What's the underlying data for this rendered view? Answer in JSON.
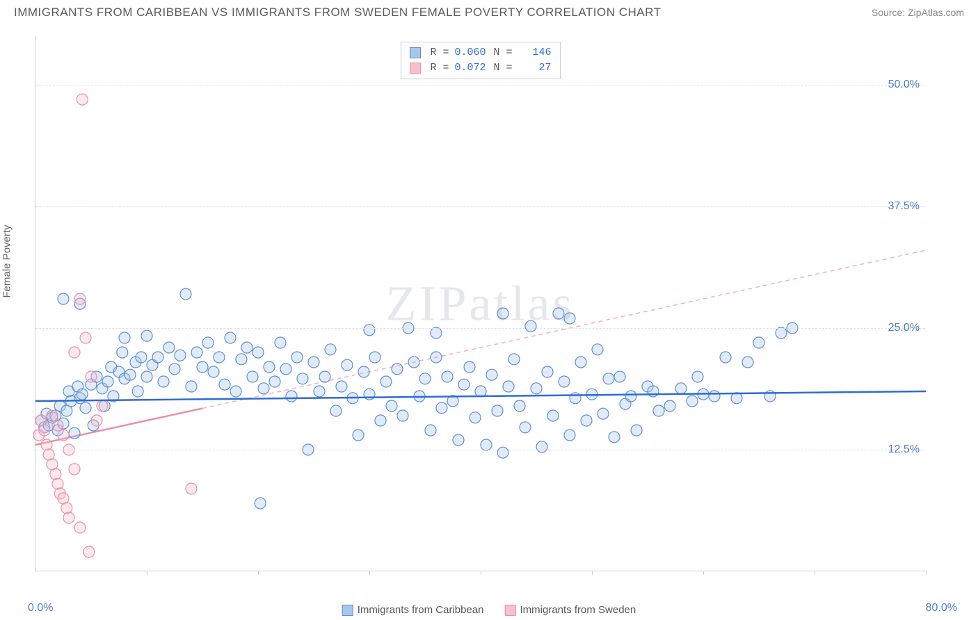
{
  "title": "IMMIGRANTS FROM CARIBBEAN VS IMMIGRANTS FROM SWEDEN FEMALE POVERTY CORRELATION CHART",
  "source": "Source: ZipAtlas.com",
  "ylabel": "Female Poverty",
  "watermark": "ZIPatlas",
  "chart": {
    "type": "scatter",
    "xlim": [
      0,
      80
    ],
    "ylim": [
      0,
      55
    ],
    "xaxis_min_label": "0.0%",
    "xaxis_max_label": "80.0%",
    "xtick_positions": [
      10,
      20,
      30,
      40,
      50,
      60,
      70,
      80
    ],
    "yticks": [
      {
        "v": 12.5,
        "label": "12.5%"
      },
      {
        "v": 25.0,
        "label": "25.0%"
      },
      {
        "v": 37.5,
        "label": "37.5%"
      },
      {
        "v": 50.0,
        "label": "50.0%"
      }
    ],
    "grid_color": "#e0e0e0",
    "axis_color": "#cccccc",
    "tick_label_color": "#4a7ec9",
    "background_color": "#ffffff",
    "marker_radius": 8,
    "marker_stroke_width": 1.2,
    "marker_fill_opacity": 0.35,
    "series": [
      {
        "name": "Immigrants from Caribbean",
        "color_fill": "#a8c5eb",
        "color_stroke": "#5b8fd6",
        "R": "0.060",
        "N": "146",
        "trend": {
          "style": "solid",
          "color": "#2e6bd6",
          "width": 2.5,
          "y_at_xmin": 17.5,
          "y_at_xmax": 18.5,
          "extrapolate": true
        },
        "points": [
          [
            0.5,
            15.5
          ],
          [
            0.8,
            14.8
          ],
          [
            1.0,
            16.2
          ],
          [
            1.2,
            15.0
          ],
          [
            1.5,
            15.8
          ],
          [
            1.8,
            16.0
          ],
          [
            2.0,
            14.5
          ],
          [
            2.2,
            17.0
          ],
          [
            2.5,
            15.2
          ],
          [
            2.8,
            16.5
          ],
          [
            3.0,
            18.5
          ],
          [
            3.2,
            17.5
          ],
          [
            3.5,
            14.2
          ],
          [
            3.8,
            19.0
          ],
          [
            4.0,
            17.8
          ],
          [
            4.2,
            18.2
          ],
          [
            4.5,
            16.8
          ],
          [
            5.0,
            19.2
          ],
          [
            5.2,
            15.0
          ],
          [
            5.5,
            20.0
          ],
          [
            6.0,
            18.8
          ],
          [
            6.2,
            17.0
          ],
          [
            6.5,
            19.5
          ],
          [
            6.8,
            21.0
          ],
          [
            7.0,
            18.0
          ],
          [
            7.5,
            20.5
          ],
          [
            7.8,
            22.5
          ],
          [
            8.0,
            19.8
          ],
          [
            8.5,
            20.2
          ],
          [
            9.0,
            21.5
          ],
          [
            9.2,
            18.5
          ],
          [
            9.5,
            22.0
          ],
          [
            10.0,
            20.0
          ],
          [
            10.5,
            21.2
          ],
          [
            11.0,
            22.0
          ],
          [
            11.5,
            19.5
          ],
          [
            12.0,
            23.0
          ],
          [
            12.5,
            20.8
          ],
          [
            13.0,
            22.2
          ],
          [
            13.5,
            28.5
          ],
          [
            14.0,
            19.0
          ],
          [
            14.5,
            22.5
          ],
          [
            15.0,
            21.0
          ],
          [
            15.5,
            23.5
          ],
          [
            16.0,
            20.5
          ],
          [
            16.5,
            22.0
          ],
          [
            17.0,
            19.2
          ],
          [
            17.5,
            24.0
          ],
          [
            18.0,
            18.5
          ],
          [
            18.5,
            21.8
          ],
          [
            19.0,
            23.0
          ],
          [
            19.5,
            20.0
          ],
          [
            20.0,
            22.5
          ],
          [
            20.2,
            7.0
          ],
          [
            20.5,
            18.8
          ],
          [
            21.0,
            21.0
          ],
          [
            21.5,
            19.5
          ],
          [
            22.0,
            23.5
          ],
          [
            22.5,
            20.8
          ],
          [
            23.0,
            18.0
          ],
          [
            23.5,
            22.0
          ],
          [
            24.0,
            19.8
          ],
          [
            24.5,
            12.5
          ],
          [
            25.0,
            21.5
          ],
          [
            25.5,
            18.5
          ],
          [
            26.0,
            20.0
          ],
          [
            26.5,
            22.8
          ],
          [
            27.0,
            16.5
          ],
          [
            27.5,
            19.0
          ],
          [
            28.0,
            21.2
          ],
          [
            28.5,
            17.8
          ],
          [
            29.0,
            14.0
          ],
          [
            29.5,
            20.5
          ],
          [
            30.0,
            18.2
          ],
          [
            30.5,
            22.0
          ],
          [
            31.0,
            15.5
          ],
          [
            31.5,
            19.5
          ],
          [
            32.0,
            17.0
          ],
          [
            32.5,
            20.8
          ],
          [
            33.0,
            16.0
          ],
          [
            33.5,
            25.0
          ],
          [
            34.0,
            21.5
          ],
          [
            34.5,
            18.0
          ],
          [
            35.0,
            19.8
          ],
          [
            35.5,
            14.5
          ],
          [
            36.0,
            22.0
          ],
          [
            36.5,
            16.8
          ],
          [
            37.0,
            20.0
          ],
          [
            37.5,
            17.5
          ],
          [
            38.0,
            13.5
          ],
          [
            38.5,
            19.2
          ],
          [
            39.0,
            21.0
          ],
          [
            39.5,
            15.8
          ],
          [
            40.0,
            18.5
          ],
          [
            40.5,
            13.0
          ],
          [
            41.0,
            20.2
          ],
          [
            41.5,
            16.5
          ],
          [
            42.0,
            12.2
          ],
          [
            42.5,
            19.0
          ],
          [
            43.0,
            21.8
          ],
          [
            43.5,
            17.0
          ],
          [
            44.0,
            14.8
          ],
          [
            44.5,
            25.2
          ],
          [
            45.0,
            18.8
          ],
          [
            45.5,
            12.8
          ],
          [
            46.0,
            20.5
          ],
          [
            46.5,
            16.0
          ],
          [
            47.0,
            26.5
          ],
          [
            47.5,
            19.5
          ],
          [
            48.0,
            14.0
          ],
          [
            48.5,
            17.8
          ],
          [
            49.0,
            21.5
          ],
          [
            49.5,
            15.5
          ],
          [
            50.0,
            18.2
          ],
          [
            50.5,
            22.8
          ],
          [
            51.0,
            16.2
          ],
          [
            51.5,
            19.8
          ],
          [
            52.0,
            13.8
          ],
          [
            52.5,
            20.0
          ],
          [
            53.0,
            17.2
          ],
          [
            53.5,
            18.0
          ],
          [
            54.0,
            14.5
          ],
          [
            55.0,
            19.0
          ],
          [
            56.0,
            16.5
          ],
          [
            57.0,
            17.0
          ],
          [
            58.0,
            18.8
          ],
          [
            59.0,
            17.5
          ],
          [
            60.0,
            18.2
          ],
          [
            62.0,
            22.0
          ],
          [
            63.0,
            17.8
          ],
          [
            64.0,
            21.5
          ],
          [
            65.0,
            23.5
          ],
          [
            66.0,
            18.0
          ],
          [
            67.0,
            24.5
          ],
          [
            68.0,
            25.0
          ],
          [
            2.5,
            28.0
          ],
          [
            4.0,
            27.5
          ],
          [
            48.0,
            26.0
          ],
          [
            42.0,
            26.5
          ],
          [
            36.0,
            24.5
          ],
          [
            8.0,
            24.0
          ],
          [
            10.0,
            24.2
          ],
          [
            30.0,
            24.8
          ],
          [
            55.5,
            18.5
          ],
          [
            61.0,
            18.0
          ],
          [
            59.5,
            20.0
          ]
        ]
      },
      {
        "name": "Immigrants from Sweden",
        "color_fill": "#f5c0cc",
        "color_stroke": "#e88fa8",
        "R": "0.072",
        "N": "27",
        "trend": {
          "style": "solid_then_dashed",
          "color": "#e88fa8",
          "color_dash": "#f0b0c0",
          "width": 2.5,
          "solid_until_x": 15,
          "y_at_xmin": 13.0,
          "y_at_xmax": 33.0,
          "extrapolate": true
        },
        "points": [
          [
            0.3,
            14.0
          ],
          [
            0.5,
            15.5
          ],
          [
            0.8,
            14.5
          ],
          [
            1.0,
            13.0
          ],
          [
            1.2,
            12.0
          ],
          [
            1.5,
            11.0
          ],
          [
            1.8,
            10.0
          ],
          [
            2.0,
            9.0
          ],
          [
            2.2,
            8.0
          ],
          [
            2.5,
            7.5
          ],
          [
            2.8,
            6.5
          ],
          [
            3.0,
            5.5
          ],
          [
            3.5,
            22.5
          ],
          [
            4.0,
            28.0
          ],
          [
            4.2,
            48.5
          ],
          [
            4.5,
            24.0
          ],
          [
            5.0,
            20.0
          ],
          [
            5.5,
            15.5
          ],
          [
            6.0,
            17.0
          ],
          [
            1.5,
            16.0
          ],
          [
            2.0,
            15.0
          ],
          [
            2.5,
            14.0
          ],
          [
            3.0,
            12.5
          ],
          [
            3.5,
            10.5
          ],
          [
            14.0,
            8.5
          ],
          [
            4.8,
            2.0
          ],
          [
            4.0,
            4.5
          ]
        ]
      }
    ]
  },
  "bottom_legend": [
    {
      "label": "Immigrants from Caribbean",
      "fill": "#a8c5eb",
      "stroke": "#5b8fd6"
    },
    {
      "label": "Immigrants from Sweden",
      "fill": "#f5c0cc",
      "stroke": "#e88fa8"
    }
  ]
}
